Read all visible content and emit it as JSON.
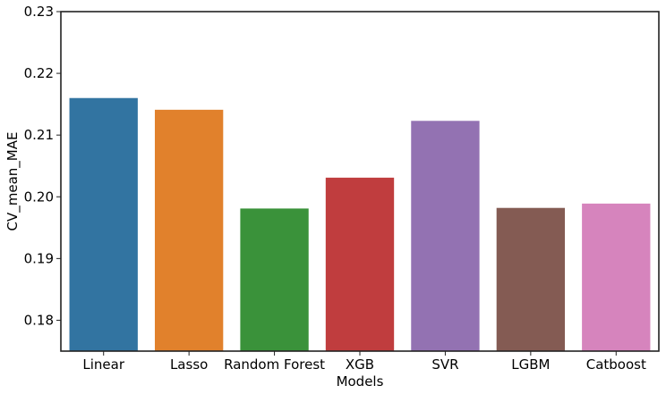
{
  "chart_data": {
    "type": "bar",
    "categories": [
      "Linear",
      "Lasso",
      "Random Forest",
      "XGB",
      "SVR",
      "LGBM",
      "Catboost"
    ],
    "values": [
      0.216,
      0.2141,
      0.1981,
      0.2031,
      0.2123,
      0.1982,
      0.1989
    ],
    "colors": [
      "#3274a1",
      "#e1812c",
      "#3a923a",
      "#c03d3e",
      "#9372b2",
      "#845b53",
      "#d684bd"
    ],
    "xlabel": "Models",
    "ylabel": "CV_mean_MAE",
    "ylim": [
      0.175,
      0.23
    ],
    "yticks": [
      0.18,
      0.19,
      0.2,
      0.21,
      0.22,
      0.23
    ],
    "ytick_labels": [
      "0.18",
      "0.19",
      "0.20",
      "0.21",
      "0.22",
      "0.23"
    ],
    "grid": false,
    "legend": "none"
  }
}
